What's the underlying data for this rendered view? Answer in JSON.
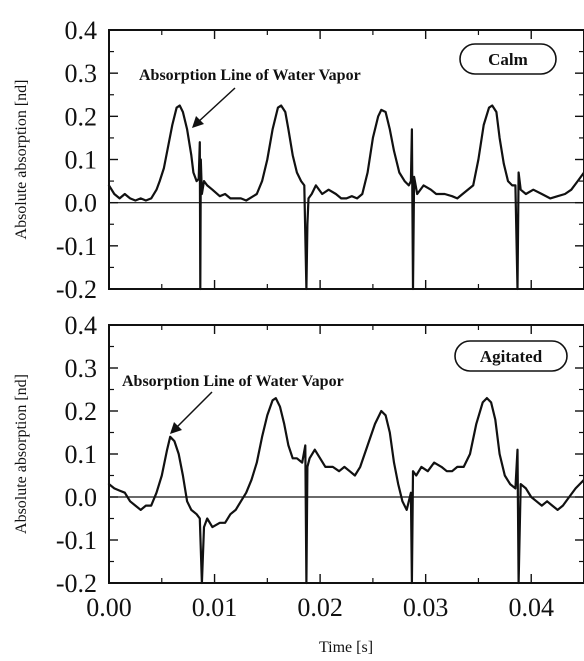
{
  "chart_data": [
    {
      "type": "line",
      "x_range": [
        0.0,
        0.045
      ],
      "ylim": [
        -0.2,
        0.4
      ],
      "yticks": [
        -0.2,
        -0.1,
        0.0,
        0.1,
        0.2,
        0.3,
        0.4
      ],
      "ytick_labels": [
        "-0.2",
        "-0.1",
        "0.0",
        "0.1",
        "0.2",
        "0.3",
        "0.4"
      ],
      "ylabel": "Absolute absorption [nd]",
      "xlabel": "",
      "legend_label": "Calm",
      "annotation": "Absorption Line of Water Vapor",
      "series": [
        {
          "points": [
            [
              0.0,
              0.04
            ],
            [
              0.0005,
              0.02
            ],
            [
              0.001,
              0.01
            ],
            [
              0.0015,
              0.02
            ],
            [
              0.002,
              0.01
            ],
            [
              0.0025,
              0.005
            ],
            [
              0.003,
              0.01
            ],
            [
              0.0035,
              0.005
            ],
            [
              0.004,
              0.01
            ],
            [
              0.0045,
              0.03
            ],
            [
              0.0048,
              0.05
            ],
            [
              0.0052,
              0.08
            ],
            [
              0.0056,
              0.13
            ],
            [
              0.006,
              0.18
            ],
            [
              0.0064,
              0.22
            ],
            [
              0.0067,
              0.225
            ],
            [
              0.007,
              0.21
            ],
            [
              0.0074,
              0.17
            ],
            [
              0.0078,
              0.11
            ],
            [
              0.008,
              0.07
            ],
            [
              0.0083,
              0.05
            ],
            [
              0.0085,
              0.055
            ],
            [
              0.0086,
              0.14
            ],
            [
              0.00865,
              -0.2
            ],
            [
              0.0087,
              0.1
            ],
            [
              0.0088,
              0.02
            ],
            [
              0.009,
              0.05
            ],
            [
              0.0093,
              0.04
            ],
            [
              0.0098,
              0.03
            ],
            [
              0.0105,
              0.015
            ],
            [
              0.011,
              0.02
            ],
            [
              0.0115,
              0.01
            ],
            [
              0.012,
              0.01
            ],
            [
              0.0125,
              0.01
            ],
            [
              0.013,
              0.005
            ],
            [
              0.014,
              0.02
            ],
            [
              0.0145,
              0.05
            ],
            [
              0.015,
              0.1
            ],
            [
              0.0155,
              0.17
            ],
            [
              0.016,
              0.22
            ],
            [
              0.0163,
              0.225
            ],
            [
              0.0167,
              0.21
            ],
            [
              0.017,
              0.17
            ],
            [
              0.0174,
              0.11
            ],
            [
              0.0178,
              0.07
            ],
            [
              0.0182,
              0.05
            ],
            [
              0.0185,
              0.04
            ],
            [
              0.0187,
              -0.2
            ],
            [
              0.0188,
              -0.05
            ],
            [
              0.0189,
              0.01
            ],
            [
              0.0192,
              0.02
            ],
            [
              0.0196,
              0.04
            ],
            [
              0.0202,
              0.02
            ],
            [
              0.0208,
              0.03
            ],
            [
              0.0215,
              0.02
            ],
            [
              0.022,
              0.01
            ],
            [
              0.0225,
              0.01
            ],
            [
              0.023,
              0.015
            ],
            [
              0.0235,
              0.01
            ],
            [
              0.024,
              0.02
            ],
            [
              0.0245,
              0.07
            ],
            [
              0.025,
              0.15
            ],
            [
              0.0255,
              0.2
            ],
            [
              0.0258,
              0.215
            ],
            [
              0.0262,
              0.21
            ],
            [
              0.0266,
              0.17
            ],
            [
              0.027,
              0.12
            ],
            [
              0.0275,
              0.07
            ],
            [
              0.028,
              0.05
            ],
            [
              0.0284,
              0.04
            ],
            [
              0.0286,
              0.05
            ],
            [
              0.0287,
              0.17
            ],
            [
              0.0288,
              -0.2
            ],
            [
              0.0289,
              0.06
            ],
            [
              0.0292,
              0.02
            ],
            [
              0.0298,
              0.04
            ],
            [
              0.0305,
              0.03
            ],
            [
              0.031,
              0.02
            ],
            [
              0.0318,
              0.02
            ],
            [
              0.0325,
              0.015
            ],
            [
              0.033,
              0.01
            ],
            [
              0.0335,
              0.02
            ],
            [
              0.0345,
              0.04
            ],
            [
              0.035,
              0.1
            ],
            [
              0.0355,
              0.18
            ],
            [
              0.036,
              0.22
            ],
            [
              0.0363,
              0.225
            ],
            [
              0.0367,
              0.21
            ],
            [
              0.037,
              0.15
            ],
            [
              0.0374,
              0.09
            ],
            [
              0.0378,
              0.05
            ],
            [
              0.0382,
              0.04
            ],
            [
              0.0385,
              0.04
            ],
            [
              0.0387,
              -0.2
            ],
            [
              0.0388,
              0.07
            ],
            [
              0.039,
              0.03
            ],
            [
              0.0395,
              0.02
            ],
            [
              0.0402,
              0.03
            ],
            [
              0.041,
              0.02
            ],
            [
              0.0418,
              0.01
            ],
            [
              0.0425,
              0.015
            ],
            [
              0.0432,
              0.02
            ],
            [
              0.0438,
              0.03
            ],
            [
              0.0444,
              0.05
            ],
            [
              0.045,
              0.07
            ]
          ]
        }
      ]
    },
    {
      "type": "line",
      "x_range": [
        0.0,
        0.045
      ],
      "ylim": [
        -0.2,
        0.4
      ],
      "yticks": [
        -0.2,
        -0.1,
        0.0,
        0.1,
        0.2,
        0.3,
        0.4
      ],
      "ytick_labels": [
        "-0.2",
        "-0.1",
        "0.0",
        "0.1",
        "0.2",
        "0.3",
        "0.4"
      ],
      "xticks": [
        0.0,
        0.01,
        0.02,
        0.03,
        0.04
      ],
      "xtick_labels": [
        "0.00",
        "0.01",
        "0.02",
        "0.03",
        "0.04"
      ],
      "ylabel": "Absolute absorption [nd]",
      "xlabel": "Time [s]",
      "legend_label": "Agitated",
      "annotation": "Absorption Line of Water Vapor",
      "series": [
        {
          "points": [
            [
              0.0,
              0.03
            ],
            [
              0.0005,
              0.02
            ],
            [
              0.001,
              0.015
            ],
            [
              0.0015,
              0.01
            ],
            [
              0.002,
              -0.01
            ],
            [
              0.0025,
              -0.02
            ],
            [
              0.003,
              -0.03
            ],
            [
              0.0035,
              -0.02
            ],
            [
              0.004,
              -0.02
            ],
            [
              0.0045,
              0.01
            ],
            [
              0.005,
              0.05
            ],
            [
              0.0055,
              0.11
            ],
            [
              0.0058,
              0.14
            ],
            [
              0.0062,
              0.13
            ],
            [
              0.0066,
              0.1
            ],
            [
              0.007,
              0.05
            ],
            [
              0.0074,
              -0.01
            ],
            [
              0.0078,
              -0.03
            ],
            [
              0.0083,
              -0.04
            ],
            [
              0.0086,
              -0.05
            ],
            [
              0.0088,
              -0.2
            ],
            [
              0.009,
              -0.07
            ],
            [
              0.0093,
              -0.05
            ],
            [
              0.0098,
              -0.07
            ],
            [
              0.0105,
              -0.06
            ],
            [
              0.011,
              -0.06
            ],
            [
              0.0115,
              -0.04
            ],
            [
              0.012,
              -0.03
            ],
            [
              0.0125,
              -0.01
            ],
            [
              0.013,
              0.01
            ],
            [
              0.0135,
              0.04
            ],
            [
              0.014,
              0.08
            ],
            [
              0.0145,
              0.14
            ],
            [
              0.015,
              0.19
            ],
            [
              0.0155,
              0.225
            ],
            [
              0.0158,
              0.23
            ],
            [
              0.0162,
              0.21
            ],
            [
              0.0166,
              0.17
            ],
            [
              0.017,
              0.12
            ],
            [
              0.0174,
              0.09
            ],
            [
              0.0178,
              0.09
            ],
            [
              0.0183,
              0.08
            ],
            [
              0.0186,
              0.12
            ],
            [
              0.0187,
              -0.2
            ],
            [
              0.0188,
              0.07
            ],
            [
              0.019,
              0.09
            ],
            [
              0.0195,
              0.11
            ],
            [
              0.02,
              0.09
            ],
            [
              0.0205,
              0.07
            ],
            [
              0.0212,
              0.07
            ],
            [
              0.0218,
              0.06
            ],
            [
              0.0223,
              0.07
            ],
            [
              0.0228,
              0.06
            ],
            [
              0.0233,
              0.05
            ],
            [
              0.0238,
              0.07
            ],
            [
              0.0245,
              0.12
            ],
            [
              0.0252,
              0.17
            ],
            [
              0.0258,
              0.2
            ],
            [
              0.0262,
              0.19
            ],
            [
              0.0266,
              0.15
            ],
            [
              0.027,
              0.08
            ],
            [
              0.0274,
              0.03
            ],
            [
              0.0278,
              -0.01
            ],
            [
              0.0282,
              -0.03
            ],
            [
              0.0286,
              0.01
            ],
            [
              0.0287,
              -0.2
            ],
            [
              0.0288,
              0.06
            ],
            [
              0.0291,
              0.05
            ],
            [
              0.0296,
              0.07
            ],
            [
              0.0302,
              0.06
            ],
            [
              0.0308,
              0.08
            ],
            [
              0.0315,
              0.07
            ],
            [
              0.032,
              0.06
            ],
            [
              0.0325,
              0.06
            ],
            [
              0.033,
              0.07
            ],
            [
              0.0336,
              0.07
            ],
            [
              0.0342,
              0.1
            ],
            [
              0.0348,
              0.17
            ],
            [
              0.0354,
              0.22
            ],
            [
              0.0358,
              0.23
            ],
            [
              0.0362,
              0.22
            ],
            [
              0.0366,
              0.18
            ],
            [
              0.037,
              0.1
            ],
            [
              0.0375,
              0.05
            ],
            [
              0.038,
              0.03
            ],
            [
              0.0385,
              0.02
            ],
            [
              0.0387,
              0.11
            ],
            [
              0.0388,
              -0.2
            ],
            [
              0.039,
              0.03
            ],
            [
              0.0395,
              0.02
            ],
            [
              0.04,
              0.0
            ],
            [
              0.0405,
              -0.01
            ],
            [
              0.041,
              -0.02
            ],
            [
              0.0415,
              -0.01
            ],
            [
              0.042,
              -0.02
            ],
            [
              0.0425,
              -0.03
            ],
            [
              0.043,
              -0.02
            ],
            [
              0.0436,
              0.0
            ],
            [
              0.0442,
              0.02
            ],
            [
              0.045,
              0.04
            ]
          ]
        }
      ]
    }
  ]
}
